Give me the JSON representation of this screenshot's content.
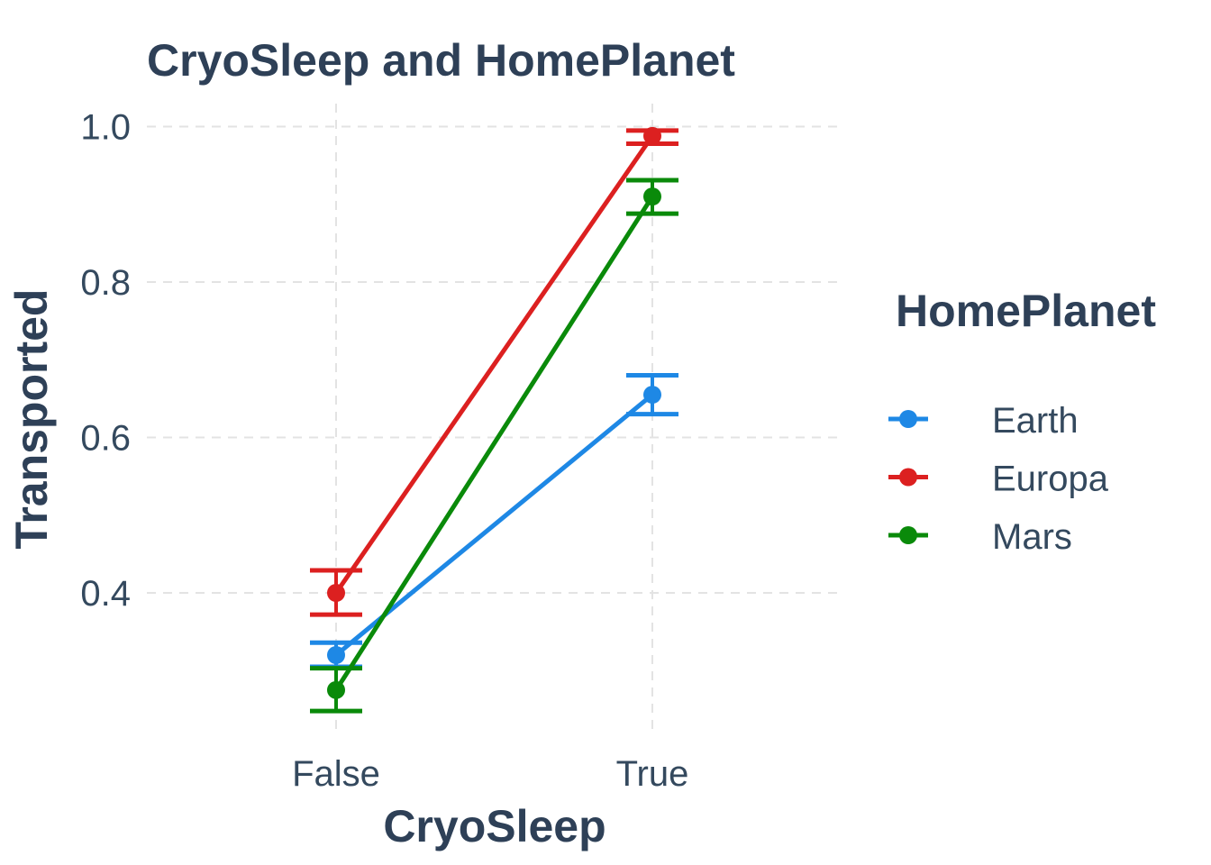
{
  "chart_data": {
    "type": "line",
    "title": "CryoSleep and HomePlanet",
    "xlabel": "CryoSleep",
    "ylabel": "Transported",
    "categories": [
      "False",
      "True"
    ],
    "y_ticks": [
      "0.4",
      "0.6",
      "0.8",
      "1.0"
    ],
    "ylim": [
      0.215,
      1.03
    ],
    "grid": true,
    "error_bars": true,
    "legend": {
      "title": "HomePlanet",
      "position": "right"
    },
    "series": [
      {
        "name": "Earth",
        "color": "#1e88e5",
        "values": [
          0.32,
          0.655
        ],
        "err_low": [
          0.305,
          0.63
        ],
        "err_high": [
          0.336,
          0.68
        ]
      },
      {
        "name": "Europa",
        "color": "#dc2020",
        "values": [
          0.4,
          0.988
        ],
        "err_low": [
          0.372,
          0.978
        ],
        "err_high": [
          0.429,
          0.995
        ]
      },
      {
        "name": "Mars",
        "color": "#0a8a0a",
        "values": [
          0.275,
          0.91
        ],
        "err_low": [
          0.248,
          0.888
        ],
        "err_high": [
          0.303,
          0.931
        ]
      }
    ]
  }
}
